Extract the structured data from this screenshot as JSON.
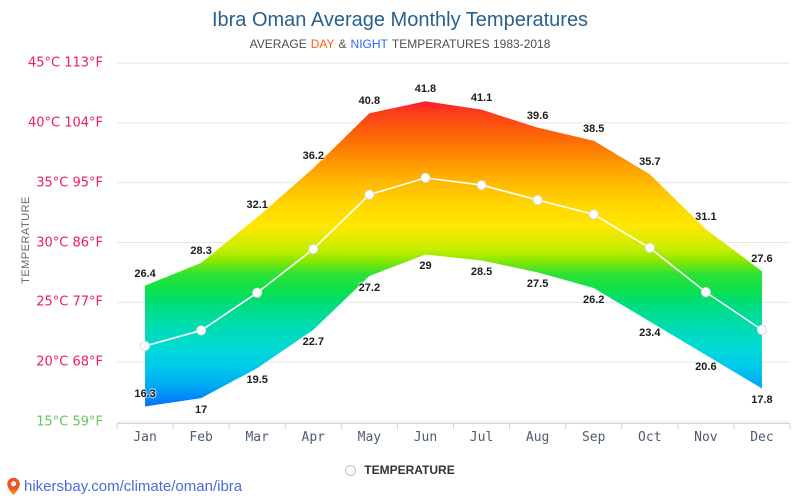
{
  "title": "Ibra Oman Average Monthly Temperatures",
  "subtitle": {
    "prefix": "AVERAGE",
    "day": "DAY",
    "amp": "&",
    "night": "NIGHT",
    "suffix": "TEMPERATURES 1983-2018"
  },
  "y_axis_title": "TEMPERATURE",
  "legend": {
    "label": "TEMPERATURE"
  },
  "footer": {
    "link_text": "hikersbay.com/climate/oman/ibra"
  },
  "colors": {
    "title": "#27618f",
    "subtitle": "#4f4f4f",
    "subtitle_day": "#fa5e16",
    "subtitle_night": "#2d68f5",
    "ytick": "#ee1d62",
    "ytick_last": "#63c763",
    "month_label": "#4e5c6e",
    "data_label": "#1c1c1c",
    "grid": "#e6e6e6",
    "axis": "#ccd6eb",
    "avg_line": "#ffffff",
    "marker_fill": "#ffffff",
    "marker_stroke": "#d9d9d9",
    "footer_link": "#4a6be0",
    "pin": "#f4511e",
    "gradient": [
      [
        0,
        "#e8003d"
      ],
      [
        10,
        "#fa143f"
      ],
      [
        13.3,
        "#fb3a1a"
      ],
      [
        20,
        "#fd6409"
      ],
      [
        26.7,
        "#fe9000"
      ],
      [
        33.3,
        "#ffb800"
      ],
      [
        40,
        "#ffd900"
      ],
      [
        45.3,
        "#ffe600"
      ],
      [
        51.7,
        "#c8ee00"
      ],
      [
        55,
        "#8ce800"
      ],
      [
        58.7,
        "#2ee233"
      ],
      [
        63.3,
        "#0ce04c"
      ],
      [
        66.7,
        "#00dc78"
      ],
      [
        73.3,
        "#00dcb0"
      ],
      [
        80,
        "#00d8d8"
      ],
      [
        85,
        "#00c8ec"
      ],
      [
        90,
        "#00a8f4"
      ],
      [
        94,
        "#0080f8"
      ],
      [
        96.7,
        "#1a66f2"
      ],
      [
        100,
        "#2a52e8"
      ]
    ]
  },
  "chart_data": {
    "type": "area",
    "categories": [
      "Jan",
      "Feb",
      "Mar",
      "Apr",
      "May",
      "Jun",
      "Jul",
      "Aug",
      "Sep",
      "Oct",
      "Nov",
      "Dec"
    ],
    "series": [
      {
        "name": "Day",
        "values": [
          26.4,
          28.3,
          32.1,
          36.2,
          40.8,
          41.8,
          41.1,
          39.6,
          38.5,
          35.7,
          31.1,
          27.6
        ]
      },
      {
        "name": "Night",
        "values": [
          16.3,
          17,
          19.5,
          22.7,
          27.2,
          29,
          28.5,
          27.5,
          26.2,
          23.4,
          20.6,
          17.8
        ]
      },
      {
        "name": "Average",
        "values": [
          21.35,
          22.65,
          25.8,
          29.45,
          34.0,
          35.4,
          34.8,
          33.55,
          32.35,
          29.55,
          25.85,
          22.7
        ]
      }
    ],
    "ylabel": "TEMPERATURE",
    "xlabel": "",
    "ylim": [
      15,
      45
    ],
    "yticks": [
      {
        "label": "45°C 113°F",
        "c": 45
      },
      {
        "label": "40°C 104°F",
        "c": 40
      },
      {
        "label": "35°C 95°F",
        "c": 35
      },
      {
        "label": "30°C 86°F",
        "c": 30
      },
      {
        "label": "25°C 77°F",
        "c": 25
      },
      {
        "label": "20°C 68°F",
        "c": 20
      },
      {
        "label": "15°C 59°F",
        "c": 15
      }
    ],
    "grid": true,
    "legend_position": "bottom"
  }
}
